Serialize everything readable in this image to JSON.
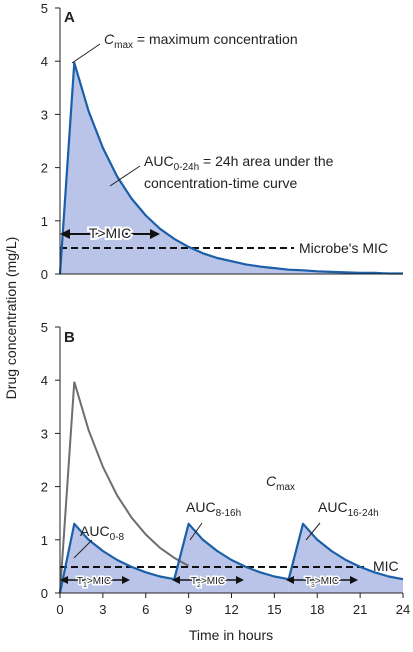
{
  "chart_data": [
    {
      "type": "area",
      "panel_label": "A",
      "x": [
        0,
        1,
        2,
        3,
        4,
        5,
        6,
        7,
        8,
        9,
        10,
        11,
        12,
        13,
        14,
        15,
        16,
        17,
        18,
        19,
        20,
        21,
        22,
        23,
        24
      ],
      "series": [
        {
          "values": [
            0,
            3.97,
            3.06,
            2.37,
            1.83,
            1.42,
            1.1,
            0.85,
            0.66,
            0.51,
            0.39,
            0.3,
            0.24,
            0.18,
            0.14,
            0.11,
            0.08,
            0.07,
            0.05,
            0.04,
            0.03,
            0.02,
            0.02,
            0.01,
            0.01
          ]
        }
      ],
      "mic": 0.5,
      "ylim": [
        0,
        5
      ],
      "yticks": [
        0,
        1,
        2,
        3,
        4,
        5
      ],
      "annotations": {
        "cmax_main": "C",
        "cmax_sub": "max",
        "cmax_rest": " = maximum concentration",
        "auc_main": "AUC",
        "auc_sub": "0-24h",
        "auc_rest": " = 24h area under the",
        "auc_line2": "concentration-time curve",
        "t_mic": "T>MIC",
        "mic_label": "Microbe's MIC"
      }
    },
    {
      "type": "area",
      "panel_label": "B",
      "x_reference": [
        0,
        1,
        2,
        3,
        4,
        5,
        6,
        7,
        8,
        9
      ],
      "reference_series": [
        0,
        3.97,
        3.06,
        2.37,
        1.83,
        1.42,
        1.1,
        0.85,
        0.66,
        0.51
      ],
      "doses": [
        {
          "x": [
            0,
            1,
            2,
            3,
            4,
            5,
            6,
            7,
            8
          ],
          "values": [
            0,
            1.3,
            1.0,
            0.79,
            0.62,
            0.49,
            0.39,
            0.31,
            0.26
          ]
        },
        {
          "x": [
            8,
            9,
            10,
            11,
            12,
            13,
            14,
            15,
            16
          ],
          "values": [
            0.26,
            1.3,
            1.0,
            0.79,
            0.62,
            0.49,
            0.39,
            0.31,
            0.26
          ]
        },
        {
          "x": [
            16,
            17,
            18,
            19,
            20,
            21,
            22,
            23,
            24
          ],
          "values": [
            0.26,
            1.3,
            1.0,
            0.79,
            0.62,
            0.49,
            0.39,
            0.31,
            0.26
          ]
        }
      ],
      "mic": 0.5,
      "ylim": [
        0,
        5
      ],
      "yticks": [
        0,
        1,
        2,
        3,
        4,
        5
      ],
      "xlim": [
        0,
        24
      ],
      "xticks": [
        0,
        3,
        6,
        9,
        12,
        15,
        18,
        21,
        24
      ],
      "annotations": {
        "auc1_main": "AUC",
        "auc1_sub": "0-8",
        "auc2_main": "AUC",
        "auc2_sub": "8-16h",
        "auc3_main": "AUC",
        "auc3_sub": "16-24h",
        "cmax_main": "C",
        "cmax_sub": "max",
        "mic_label": "MIC",
        "t1_main": "T",
        "t1_sub": "1",
        "t1_rest": ">MIC",
        "t2_main": "T",
        "t2_sub": "2",
        "t2_rest": ">MIC",
        "t3_main": "T",
        "t3_sub": "3",
        "t3_rest": ">MIC"
      }
    }
  ],
  "axes": {
    "ylabel": "Drug concentration (mg/L)",
    "xlabel": "Time in hours"
  },
  "colors": {
    "curve": "#1a5fa8",
    "fill": "#b9c4e8",
    "reference": "#6e6e6e",
    "mic_line": "#111111"
  }
}
